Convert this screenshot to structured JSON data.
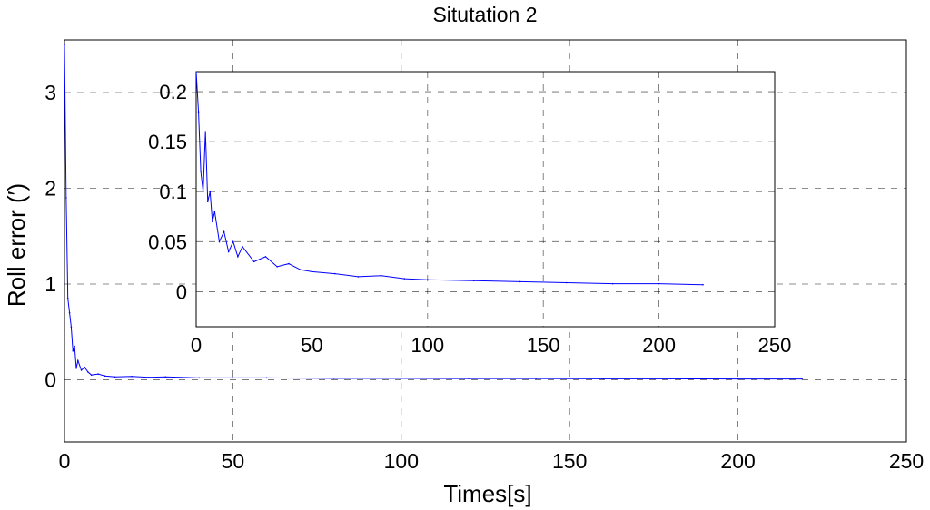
{
  "chart_data": [
    {
      "type": "line",
      "title": "Situtation 2",
      "xlabel": "Times[s]",
      "ylabel": "Roll error (′)",
      "xlim": [
        0,
        250
      ],
      "ylim": [
        -0.65,
        3.55
      ],
      "xticks": [
        "0",
        "50",
        "100",
        "150",
        "200",
        "250"
      ],
      "yticks": [
        "0",
        "1",
        "2",
        "3"
      ],
      "grid": true,
      "color": "#0000ff",
      "x": [
        0,
        0.5,
        1,
        1.5,
        2,
        2.5,
        3,
        3.5,
        4,
        5,
        6,
        7,
        8,
        10,
        12,
        15,
        20,
        25,
        30,
        40,
        50,
        60,
        80,
        100,
        120,
        140,
        160,
        180,
        200,
        219
      ],
      "values": [
        3.5,
        1.9,
        0.85,
        0.7,
        0.55,
        0.3,
        0.35,
        0.12,
        0.2,
        0.1,
        0.13,
        0.08,
        0.05,
        0.06,
        0.04,
        0.03,
        0.035,
        0.025,
        0.03,
        0.02,
        0.02,
        0.02,
        0.015,
        0.015,
        0.012,
        0.012,
        0.01,
        0.01,
        0.008,
        0.008
      ]
    },
    {
      "type": "line",
      "title": "",
      "xlabel": "",
      "ylabel": "",
      "xlim": [
        0,
        250
      ],
      "ylim": [
        -0.035,
        0.22
      ],
      "xticks": [
        "0",
        "50",
        "100",
        "150",
        "200",
        "250"
      ],
      "yticks": [
        "0",
        "0.05",
        "0.1",
        "0.15",
        "0.2"
      ],
      "grid": true,
      "color": "#0000ff",
      "x": [
        0,
        1,
        2,
        3,
        4,
        5,
        6,
        7,
        8,
        10,
        12,
        14,
        16,
        18,
        20,
        25,
        30,
        35,
        40,
        45,
        50,
        60,
        70,
        80,
        90,
        100,
        120,
        140,
        160,
        180,
        200,
        219
      ],
      "values": [
        0.22,
        0.18,
        0.12,
        0.1,
        0.16,
        0.09,
        0.1,
        0.07,
        0.08,
        0.05,
        0.06,
        0.04,
        0.05,
        0.035,
        0.045,
        0.03,
        0.035,
        0.025,
        0.028,
        0.022,
        0.02,
        0.018,
        0.015,
        0.016,
        0.013,
        0.012,
        0.011,
        0.01,
        0.009,
        0.008,
        0.008,
        0.007
      ]
    }
  ]
}
